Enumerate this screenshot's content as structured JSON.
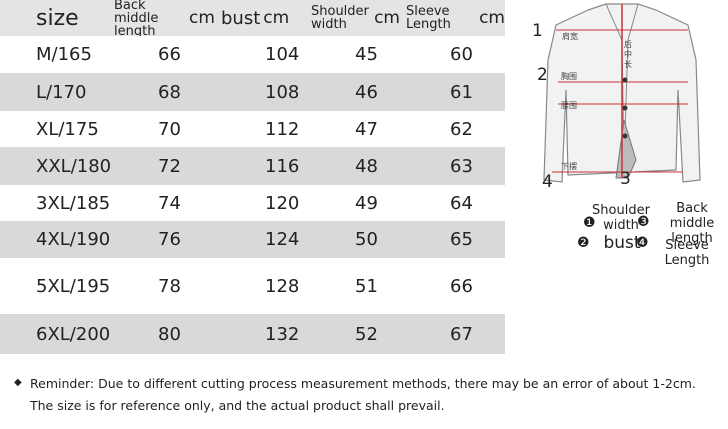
{
  "table": {
    "headers": [
      {
        "label": "size"
      },
      {
        "label": "Back middle length",
        "unit": "cm"
      },
      {
        "label": "bust",
        "unit": "cm"
      },
      {
        "label": "Shoulder width",
        "unit": "cm"
      },
      {
        "label": "Sleeve Length",
        "unit": "cm"
      }
    ],
    "rows": [
      [
        "M/165",
        66,
        104,
        45,
        60
      ],
      [
        "L/170",
        68,
        108,
        46,
        61
      ],
      [
        "XL/175",
        70,
        112,
        47,
        62
      ],
      [
        "XXL/180",
        72,
        116,
        48,
        63
      ],
      [
        "3XL/185",
        74,
        120,
        49,
        64
      ],
      [
        "4XL/190",
        76,
        124,
        50,
        65
      ],
      [
        "5XL/195",
        78,
        128,
        51,
        66
      ],
      [
        "6XL/200",
        80,
        132,
        52,
        67
      ]
    ]
  },
  "diagram": {
    "markers": [
      "1",
      "2",
      "3",
      "4"
    ],
    "labels": [
      "肩宽",
      "胸围",
      "腰围",
      "下摆",
      "后中长"
    ],
    "legend": [
      {
        "marker": "❶",
        "label": "Shoulder width"
      },
      {
        "marker": "❷",
        "label": "bust"
      },
      {
        "marker": "❸",
        "label": "Back middle length"
      },
      {
        "marker": "❹",
        "label": "Sleeve Length"
      }
    ]
  },
  "reminder": {
    "bullet": "◆",
    "lines": [
      "Reminder: Due to different cutting process measurement methods, there may be an error of about 1-2cm.",
      "The size is for reference only, and the actual product shall prevail."
    ]
  }
}
